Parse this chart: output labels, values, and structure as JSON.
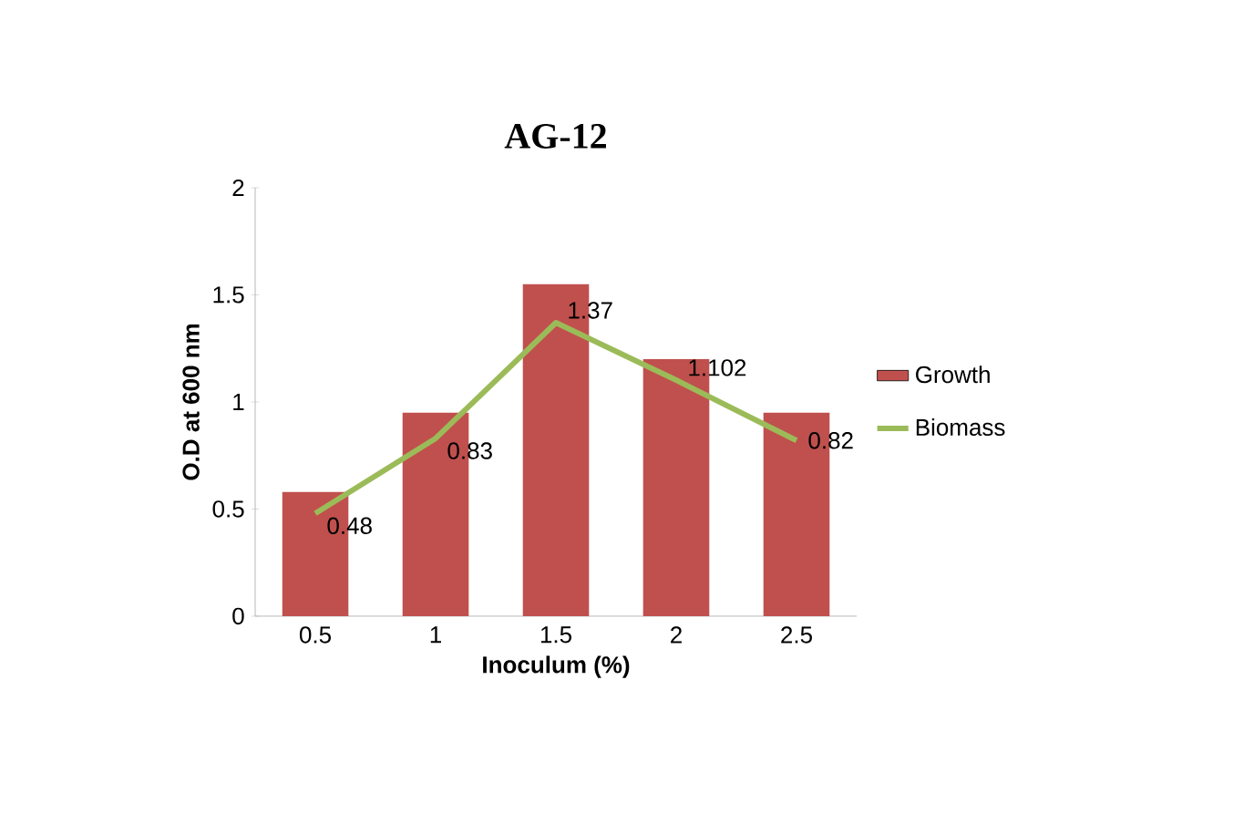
{
  "chart_data": {
    "type": "bar",
    "title": "AG-12",
    "xlabel": "Inoculum (%)",
    "ylabel": "O.D at 600 nm",
    "categories": [
      "0.5",
      "1",
      "1.5",
      "2",
      "2.5"
    ],
    "series": [
      {
        "name": "Growth",
        "color": "#c0504d",
        "values": [
          0.58,
          0.95,
          1.55,
          1.2,
          0.95
        ]
      },
      {
        "name": "Biomass",
        "type": "line",
        "color": "#9bbb59",
        "values": [
          0.48,
          0.83,
          1.37,
          1.102,
          0.82
        ],
        "value_labels": [
          "0.48",
          "0.83",
          "1.37",
          "1.102",
          "0.82"
        ]
      }
    ],
    "ylim": [
      0,
      2
    ],
    "yticks": [
      0,
      0.5,
      1,
      1.5,
      2
    ],
    "grid": false,
    "legend": "right",
    "marker": "none",
    "line_style": "solid"
  }
}
